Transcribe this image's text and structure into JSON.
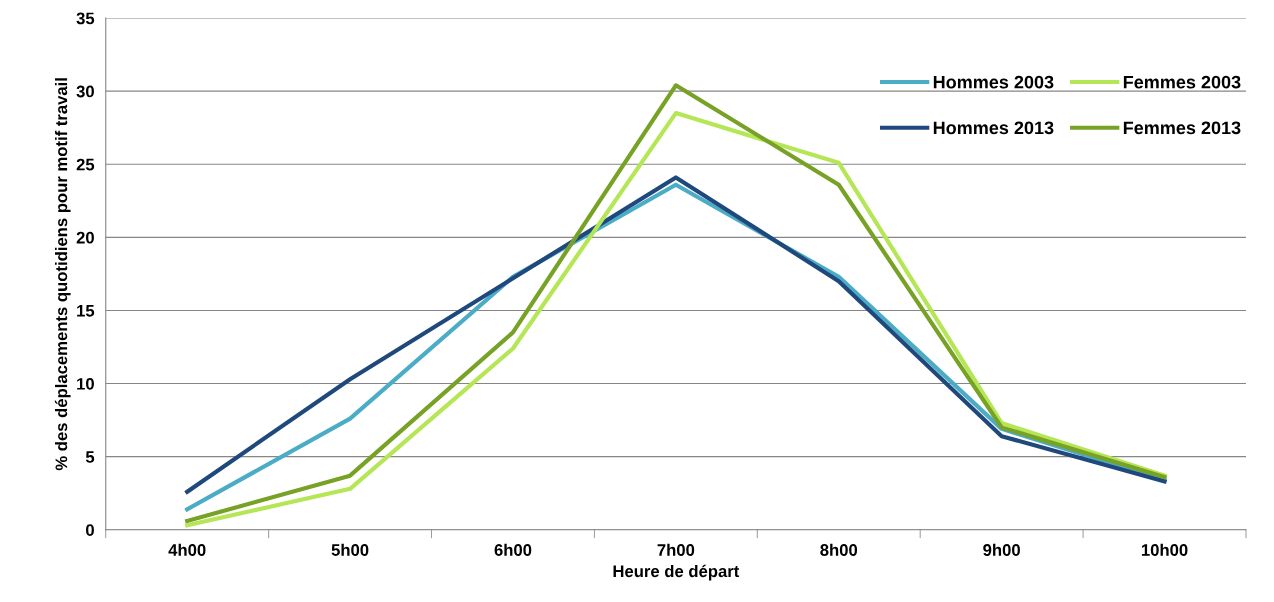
{
  "chart_data": {
    "type": "line",
    "xlabel": "Heure de départ",
    "ylabel": "% des déplacements quotidiens pour motif travail",
    "categories": [
      "4h00",
      "5h00",
      "6h00",
      "7h00",
      "8h00",
      "9h00",
      "10h00"
    ],
    "series": [
      {
        "name": "Hommes 2003",
        "color": "#4bacc6",
        "values": [
          1.4,
          7.6,
          17.3,
          23.6,
          17.3,
          6.9,
          3.4
        ]
      },
      {
        "name": "Hommes 2013",
        "color": "#1f497d",
        "values": [
          2.6,
          10.3,
          17.2,
          24.1,
          17.0,
          6.4,
          3.3
        ]
      },
      {
        "name": "Femmes 2003",
        "color": "#b5e655",
        "values": [
          0.3,
          2.8,
          12.4,
          28.5,
          25.1,
          7.3,
          3.7
        ]
      },
      {
        "name": "Femmes 2013",
        "color": "#77a225",
        "values": [
          0.6,
          3.7,
          13.5,
          30.4,
          23.6,
          7.0,
          3.6
        ]
      }
    ],
    "ylim": [
      0,
      35
    ],
    "yticks": [
      0,
      5,
      10,
      15,
      20,
      25,
      30,
      35
    ],
    "grid": "y",
    "legend": "top right",
    "marker": "none",
    "line_style": "solid"
  }
}
